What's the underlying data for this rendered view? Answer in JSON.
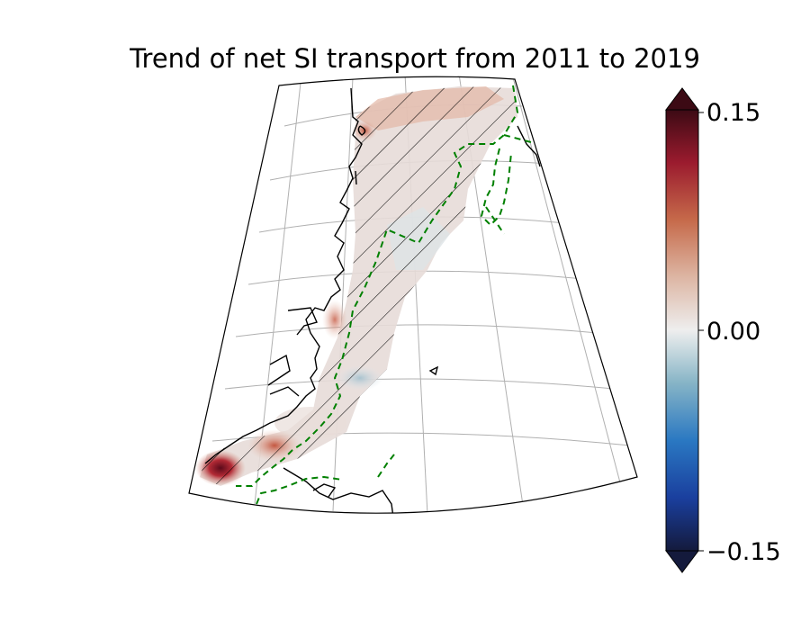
{
  "figure": {
    "title": "Trend of net SI transport from 2011 to 2019"
  },
  "colorbar": {
    "ticks": [
      {
        "value": 0.15,
        "label": "0.15"
      },
      {
        "value": 0.0,
        "label": "0.00"
      },
      {
        "value": -0.15,
        "label": "−0.15"
      }
    ],
    "vmin": -0.15,
    "vmax": 0.15,
    "extend": "both",
    "colormap": [
      "#141a3c",
      "#1a3f9e",
      "#2a78c2",
      "#86b4c6",
      "#eeeeee",
      "#ddb6a4",
      "#c66a4a",
      "#9b1b2e",
      "#3c0a14"
    ]
  },
  "map": {
    "projection": "conic",
    "gridlines": true,
    "hatching": "significance",
    "contour_color": "#008000",
    "contour_style": "dashed"
  }
}
